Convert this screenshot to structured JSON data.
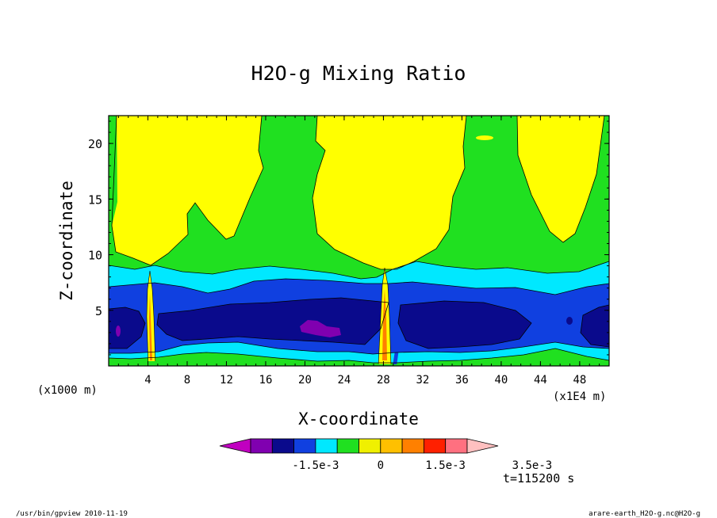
{
  "chart_data": {
    "type": "heatmap",
    "title": "H2O-g Mixing Ratio",
    "xlabel": "X-coordinate",
    "ylabel": "Z-coordinate",
    "x_unit": "(x1E4 m)",
    "y_unit": "(x1000 m)",
    "x_ticks": [
      "4",
      "8",
      "12",
      "16",
      "20",
      "24",
      "28",
      "32",
      "36",
      "40",
      "44",
      "48"
    ],
    "y_ticks": [
      "5",
      "10",
      "15",
      "20"
    ],
    "xlim": [
      0,
      51
    ],
    "ylim": [
      0,
      22.5
    ],
    "levels": [
      -0.0035,
      -0.003,
      -0.0025,
      -0.002,
      -0.0015,
      -0.001,
      -0.0005,
      0,
      0.0005,
      0.001,
      0.0015,
      0.002,
      0.0025,
      0.003,
      0.0035,
      0.004
    ],
    "colorbar": {
      "colors": [
        "#c000c0",
        "#8000b0",
        "#0a0a8c",
        "#1040e0",
        "#00e8ff",
        "#20e020",
        "#f0f000",
        "#ffc000",
        "#ff8000",
        "#ff2000",
        "#ff7080",
        "#ffc0c0"
      ],
      "tick_labels": [
        "-1.5e-3",
        "0",
        "1.5e-3",
        "3.5e-3"
      ]
    },
    "time_label": "t=115200 s"
  },
  "footer": {
    "left": "/usr/bin/gpview   2010-11-19",
    "right": "arare-earth_H2O-g.nc@H2O-g"
  },
  "colors": {
    "yellow": "#ffff00",
    "green": "#20e020",
    "cyan": "#00e8ff",
    "blue": "#1040e0",
    "navy": "#0a0a8c",
    "purple": "#8000b0",
    "orange": "#ff8000",
    "amber": "#ffc000"
  }
}
